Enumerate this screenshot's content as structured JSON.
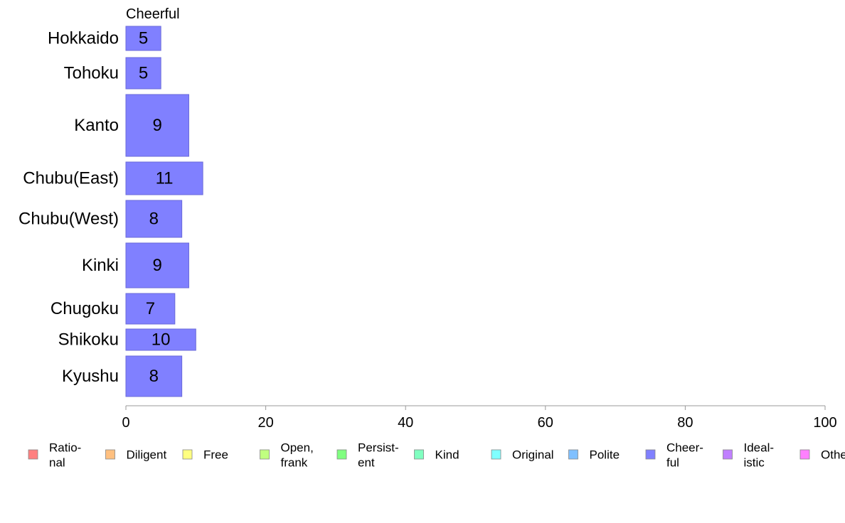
{
  "chart_data": {
    "type": "bar",
    "orientation": "horizontal",
    "title": "Cheerful",
    "categories": [
      "Hokkaido",
      "Tohoku",
      "Kanto",
      "Chubu(East)",
      "Chubu(West)",
      "Kinki",
      "Chugoku",
      "Shikoku",
      "Kyushu"
    ],
    "series": [
      {
        "values": [
          5,
          5,
          9,
          11,
          8,
          9,
          7,
          10,
          8
        ],
        "color": "#8080ff"
      }
    ],
    "bar_labels": [
      "5",
      "5",
      "9",
      "11",
      "8",
      "9",
      "7",
      "10",
      "8"
    ],
    "xlim": [
      0,
      100
    ],
    "xticks": [
      0,
      20,
      40,
      60,
      80,
      100
    ],
    "xtick_labels": [
      "0",
      "20",
      "40",
      "60",
      "80",
      "100"
    ],
    "xlabel": "",
    "ylabel": "",
    "grid": false,
    "legend_position": "bottom",
    "legend": [
      {
        "lines": [
          "Ratio-",
          "nal"
        ],
        "color": "#ff8080"
      },
      {
        "lines": [
          "Diligent"
        ],
        "color": "#ffc080"
      },
      {
        "lines": [
          "Free"
        ],
        "color": "#ffff80"
      },
      {
        "lines": [
          "Open,",
          "frank"
        ],
        "color": "#c0ff80"
      },
      {
        "lines": [
          "Persist-",
          "ent"
        ],
        "color": "#80ff80"
      },
      {
        "lines": [
          "Kind"
        ],
        "color": "#80ffc0"
      },
      {
        "lines": [
          "Original"
        ],
        "color": "#80ffff"
      },
      {
        "lines": [
          "Polite"
        ],
        "color": "#80c0ff"
      },
      {
        "lines": [
          "Cheer-",
          "ful"
        ],
        "color": "#8080ff"
      },
      {
        "lines": [
          "Ideal-",
          "istic"
        ],
        "color": "#c080ff"
      },
      {
        "lines": [
          "Other"
        ],
        "color": "#ff80ff"
      }
    ]
  }
}
